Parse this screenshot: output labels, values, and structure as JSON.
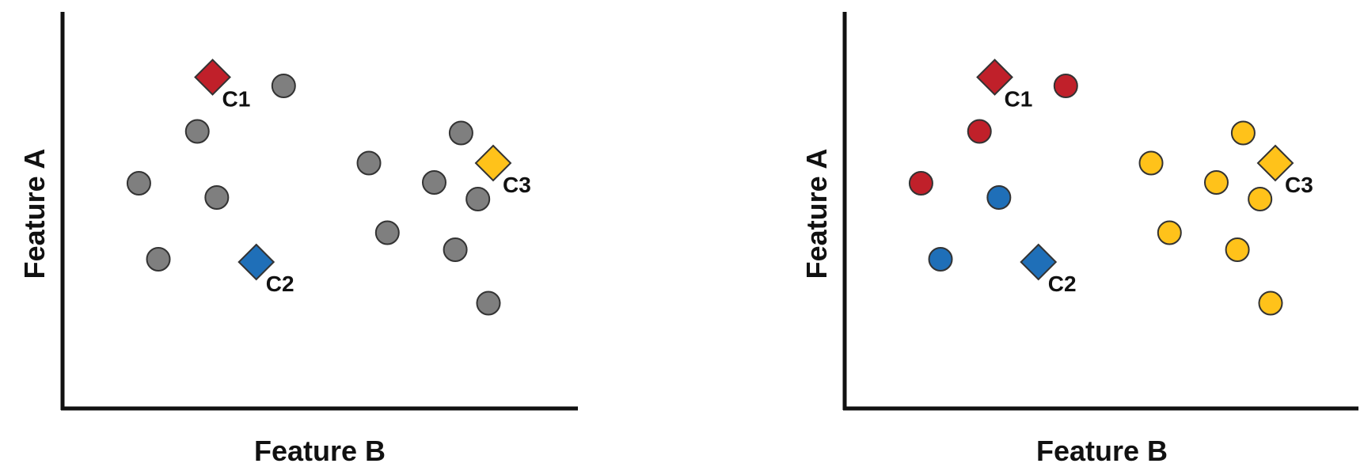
{
  "colors": {
    "unassigned": "#7f7f7f",
    "cluster_1": "#c0202a",
    "cluster_2": "#1f6fb8",
    "cluster_3": "#ffc21a",
    "axis": "#111111",
    "outline": "#333333"
  },
  "chart_data": [
    {
      "type": "scatter",
      "title": "",
      "xlabel": "Feature B",
      "ylabel": "Feature A",
      "xlim": [
        0,
        100
      ],
      "ylim": [
        0,
        100
      ],
      "grid": false,
      "legend": "none",
      "series": [
        {
          "role": "unassigned",
          "marker": "circle",
          "color": "#7f7f7f",
          "points": [
            [
              42.0,
              81.5
            ],
            [
              25.6,
              70.0
            ],
            [
              14.5,
              56.9
            ],
            [
              29.3,
              53.3
            ],
            [
              18.2,
              37.7
            ],
            [
              58.2,
              62.0
            ],
            [
              75.7,
              69.6
            ],
            [
              70.6,
              57.1
            ],
            [
              78.9,
              52.9
            ],
            [
              61.7,
              44.4
            ],
            [
              74.6,
              40.1
            ],
            [
              80.9,
              26.6
            ]
          ]
        }
      ],
      "centroids": [
        {
          "label": "C1",
          "x": 28.5,
          "y": 83.7,
          "color": "#c0202a"
        },
        {
          "label": "C2",
          "x": 36.8,
          "y": 37.0,
          "color": "#1f6fb8"
        },
        {
          "label": "C3",
          "x": 81.8,
          "y": 62.0,
          "color": "#ffc21a"
        }
      ]
    },
    {
      "type": "scatter",
      "title": "",
      "xlabel": "Feature B",
      "ylabel": "Feature A",
      "xlim": [
        0,
        100
      ],
      "ylim": [
        0,
        100
      ],
      "grid": false,
      "legend": "none",
      "series": [
        {
          "role": "cluster_1",
          "marker": "circle",
          "color": "#c0202a",
          "points": [
            [
              42.0,
              81.5
            ],
            [
              25.6,
              70.0
            ],
            [
              14.5,
              56.9
            ]
          ]
        },
        {
          "role": "cluster_2",
          "marker": "circle",
          "color": "#1f6fb8",
          "points": [
            [
              29.3,
              53.3
            ],
            [
              18.2,
              37.7
            ]
          ]
        },
        {
          "role": "cluster_3",
          "marker": "circle",
          "color": "#ffc21a",
          "points": [
            [
              58.2,
              62.0
            ],
            [
              75.7,
              69.6
            ],
            [
              70.6,
              57.1
            ],
            [
              78.9,
              52.9
            ],
            [
              61.7,
              44.4
            ],
            [
              74.6,
              40.1
            ],
            [
              80.9,
              26.6
            ]
          ]
        }
      ],
      "centroids": [
        {
          "label": "C1",
          "x": 28.5,
          "y": 83.7,
          "color": "#c0202a"
        },
        {
          "label": "C2",
          "x": 36.8,
          "y": 37.0,
          "color": "#1f6fb8"
        },
        {
          "label": "C3",
          "x": 81.8,
          "y": 62.0,
          "color": "#ffc21a"
        }
      ]
    }
  ]
}
